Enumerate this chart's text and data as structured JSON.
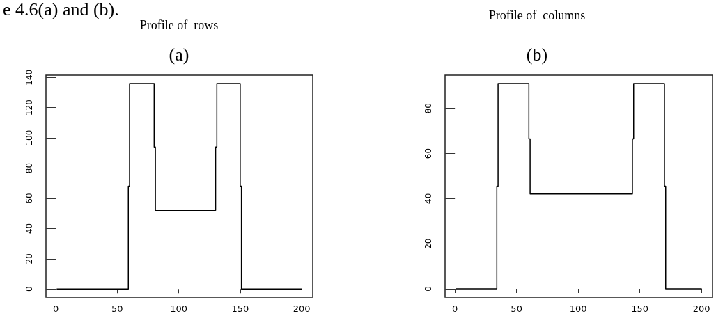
{
  "chart_data": [
    {
      "type": "step",
      "title": "Profile of  rows",
      "subtitle": "(a)",
      "annotations": [
        "e 4.6(a) and (b)."
      ],
      "x": [
        1,
        59,
        60,
        80,
        81,
        130,
        131,
        150,
        151,
        200
      ],
      "series": [
        {
          "color": "#000000",
          "values": [
            0,
            68,
            136,
            94,
            52,
            94,
            136,
            68,
            0,
            0
          ]
        }
      ],
      "xlim": [
        -8,
        209
      ],
      "xticks": [
        0,
        50,
        100,
        150,
        200
      ],
      "ylim": [
        -5.4,
        141.5
      ],
      "yticks": [
        0,
        20,
        40,
        60,
        80,
        100,
        120,
        140
      ],
      "grid": false,
      "marker": "none",
      "line_style": "solid"
    },
    {
      "type": "step",
      "title": "Profile of  columns",
      "subtitle": "(b)",
      "x": [
        1,
        34,
        35,
        60,
        61,
        144,
        145,
        170,
        171,
        200
      ],
      "series": [
        {
          "color": "#000000",
          "values": [
            0,
            45.5,
            91,
            66.5,
            42,
            66.5,
            91,
            45.5,
            0,
            0
          ]
        }
      ],
      "xlim": [
        -8,
        209
      ],
      "xticks": [
        0,
        50,
        100,
        150,
        200
      ],
      "ylim": [
        -3.7,
        94.7
      ],
      "yticks": [
        0,
        20,
        40,
        60,
        80
      ],
      "grid": false,
      "marker": "none",
      "line_style": "solid"
    }
  ]
}
